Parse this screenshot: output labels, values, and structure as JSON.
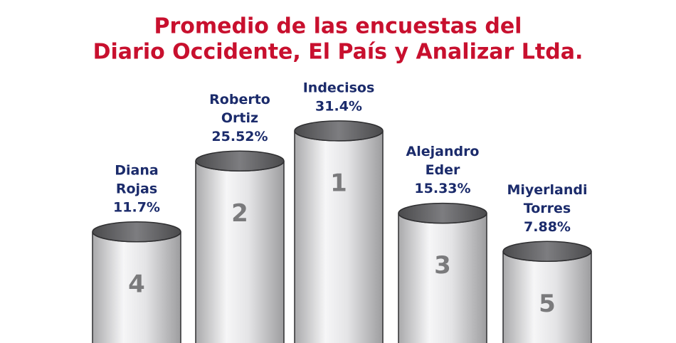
{
  "chart_data": {
    "type": "cylinder",
    "title": [
      "Promedio de las encuestas del",
      "Diario Occidente, El País y Analizar Ltda."
    ],
    "categories": [
      [
        "Diana",
        "Rojas"
      ],
      [
        "Roberto",
        "Ortiz"
      ],
      [
        "Indecisos"
      ],
      [
        "Alejandro",
        "Eder"
      ],
      [
        "Miyerlandi",
        "Torres"
      ]
    ],
    "values": [
      11.7,
      25.52,
      31.4,
      15.33,
      7.88
    ],
    "value_labels": [
      "11.7%",
      "25.52%",
      "31.4%",
      "15.33%",
      "7.88%"
    ],
    "ranks": [
      4,
      2,
      1,
      3,
      5
    ],
    "color": "#c8c8ca",
    "title_color": "#c8102e",
    "label_color": "#1b2b6b"
  }
}
